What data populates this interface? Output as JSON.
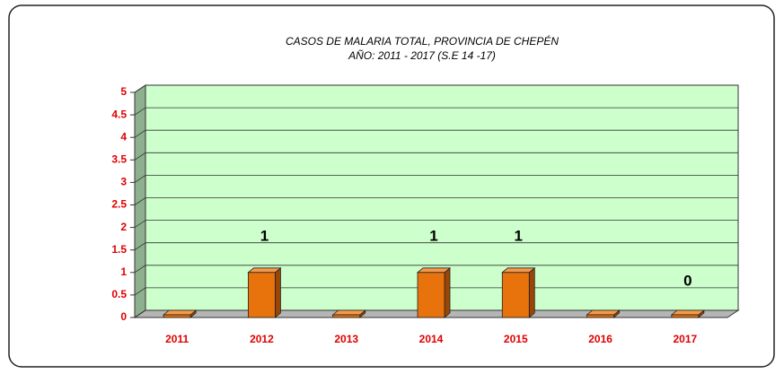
{
  "chart_data": {
    "type": "bar",
    "title": "CASOS DE MALARIA TOTAL, PROVINCIA DE CHEPÉN",
    "subtitle": "AÑO: 2011 - 2017 (S.E 14 -17)",
    "categories": [
      "2011",
      "2012",
      "2013",
      "2014",
      "2015",
      "2016",
      "2017"
    ],
    "values": [
      0,
      1,
      0,
      1,
      1,
      0,
      0
    ],
    "value_labels": [
      null,
      "1",
      null,
      "1",
      "1",
      null,
      "0"
    ],
    "color": "#e8720c",
    "ylim": [
      0,
      5
    ],
    "yticks": [
      0,
      0.5,
      1,
      1.5,
      2,
      2.5,
      3,
      3.5,
      4,
      4.5,
      5
    ],
    "grid": true
  }
}
